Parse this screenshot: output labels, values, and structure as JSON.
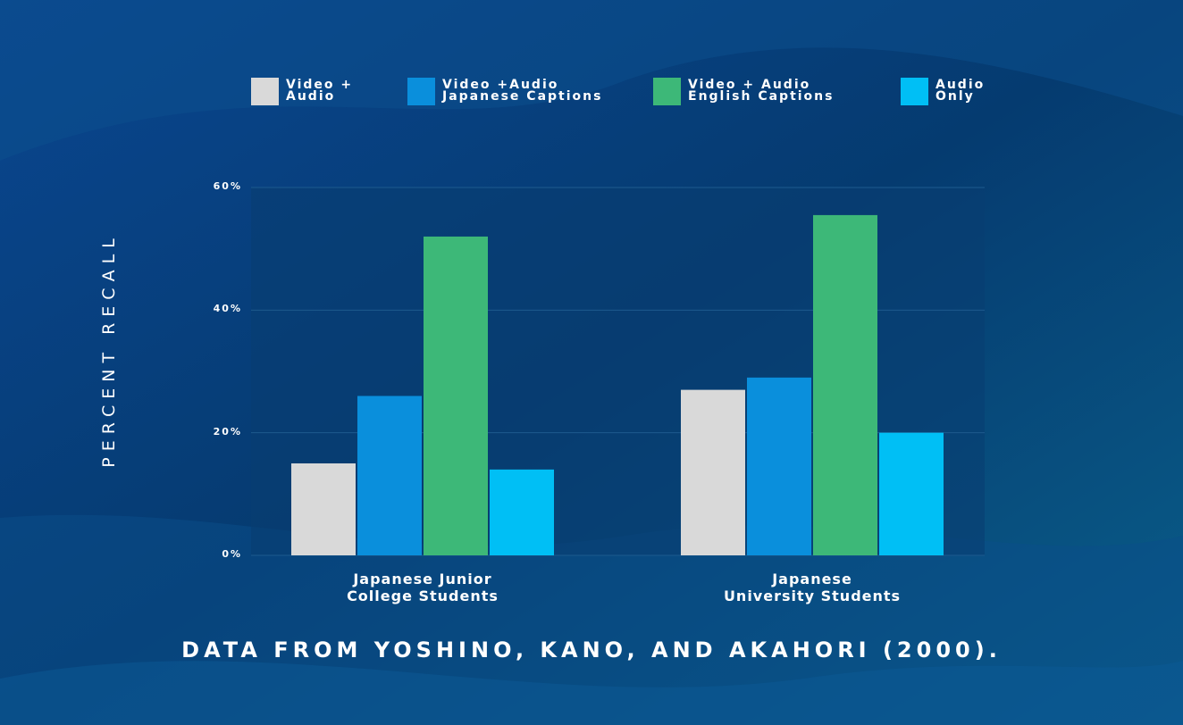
{
  "chart_data": {
    "type": "bar",
    "y_label": "PERCENT RECALL",
    "footer": "DATA FROM YOSHINO, KANO, AND AKAHORI (2000).",
    "categories": [
      "Japanese Junior\nCollege Students",
      "Japanese\nUniversity Students"
    ],
    "series": [
      {
        "name": "Video +\nAudio",
        "color": "#d9d9d9",
        "values": [
          15,
          27
        ]
      },
      {
        "name": "Video +Audio\nJapanese Captions",
        "color": "#0a8fdc",
        "values": [
          26,
          29
        ]
      },
      {
        "name": "Video + Audio\nEnglish Captions",
        "color": "#3db878",
        "values": [
          52,
          55.5
        ]
      },
      {
        "name": "Audio\nOnly",
        "color": "#00bff5",
        "values": [
          14,
          20
        ]
      }
    ],
    "ylim": [
      0,
      60
    ],
    "yticks": [
      {
        "value": 0,
        "label": "0%"
      },
      {
        "value": 20,
        "label": "20%"
      },
      {
        "value": 40,
        "label": "40%"
      },
      {
        "value": 60,
        "label": "60%"
      }
    ],
    "grid": true
  }
}
